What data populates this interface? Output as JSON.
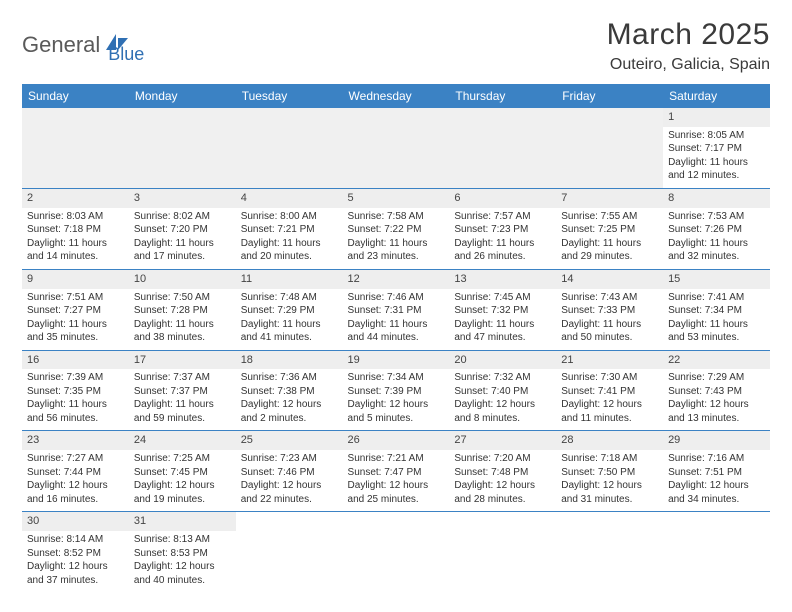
{
  "brand": {
    "part1": "General",
    "part2": "Blue"
  },
  "title": "March 2025",
  "location": "Outeiro, Galicia, Spain",
  "colors": {
    "header_bg": "#3b82c4",
    "header_text": "#ffffff",
    "brand_gray": "#5a5a5a",
    "brand_blue": "#2f6fb3",
    "cell_border": "#3b82c4",
    "daynum_bg": "#eeeeee",
    "text": "#333333"
  },
  "typography": {
    "title_fontsize": 30,
    "location_fontsize": 16,
    "dayheader_fontsize": 12,
    "cell_fontsize": 10
  },
  "day_headers": [
    "Sunday",
    "Monday",
    "Tuesday",
    "Wednesday",
    "Thursday",
    "Friday",
    "Saturday"
  ],
  "weeks": [
    [
      null,
      null,
      null,
      null,
      null,
      null,
      {
        "n": "1",
        "sr": "Sunrise: 8:05 AM",
        "ss": "Sunset: 7:17 PM",
        "d1": "Daylight: 11 hours",
        "d2": "and 12 minutes."
      }
    ],
    [
      {
        "n": "2",
        "sr": "Sunrise: 8:03 AM",
        "ss": "Sunset: 7:18 PM",
        "d1": "Daylight: 11 hours",
        "d2": "and 14 minutes."
      },
      {
        "n": "3",
        "sr": "Sunrise: 8:02 AM",
        "ss": "Sunset: 7:20 PM",
        "d1": "Daylight: 11 hours",
        "d2": "and 17 minutes."
      },
      {
        "n": "4",
        "sr": "Sunrise: 8:00 AM",
        "ss": "Sunset: 7:21 PM",
        "d1": "Daylight: 11 hours",
        "d2": "and 20 minutes."
      },
      {
        "n": "5",
        "sr": "Sunrise: 7:58 AM",
        "ss": "Sunset: 7:22 PM",
        "d1": "Daylight: 11 hours",
        "d2": "and 23 minutes."
      },
      {
        "n": "6",
        "sr": "Sunrise: 7:57 AM",
        "ss": "Sunset: 7:23 PM",
        "d1": "Daylight: 11 hours",
        "d2": "and 26 minutes."
      },
      {
        "n": "7",
        "sr": "Sunrise: 7:55 AM",
        "ss": "Sunset: 7:25 PM",
        "d1": "Daylight: 11 hours",
        "d2": "and 29 minutes."
      },
      {
        "n": "8",
        "sr": "Sunrise: 7:53 AM",
        "ss": "Sunset: 7:26 PM",
        "d1": "Daylight: 11 hours",
        "d2": "and 32 minutes."
      }
    ],
    [
      {
        "n": "9",
        "sr": "Sunrise: 7:51 AM",
        "ss": "Sunset: 7:27 PM",
        "d1": "Daylight: 11 hours",
        "d2": "and 35 minutes."
      },
      {
        "n": "10",
        "sr": "Sunrise: 7:50 AM",
        "ss": "Sunset: 7:28 PM",
        "d1": "Daylight: 11 hours",
        "d2": "and 38 minutes."
      },
      {
        "n": "11",
        "sr": "Sunrise: 7:48 AM",
        "ss": "Sunset: 7:29 PM",
        "d1": "Daylight: 11 hours",
        "d2": "and 41 minutes."
      },
      {
        "n": "12",
        "sr": "Sunrise: 7:46 AM",
        "ss": "Sunset: 7:31 PM",
        "d1": "Daylight: 11 hours",
        "d2": "and 44 minutes."
      },
      {
        "n": "13",
        "sr": "Sunrise: 7:45 AM",
        "ss": "Sunset: 7:32 PM",
        "d1": "Daylight: 11 hours",
        "d2": "and 47 minutes."
      },
      {
        "n": "14",
        "sr": "Sunrise: 7:43 AM",
        "ss": "Sunset: 7:33 PM",
        "d1": "Daylight: 11 hours",
        "d2": "and 50 minutes."
      },
      {
        "n": "15",
        "sr": "Sunrise: 7:41 AM",
        "ss": "Sunset: 7:34 PM",
        "d1": "Daylight: 11 hours",
        "d2": "and 53 minutes."
      }
    ],
    [
      {
        "n": "16",
        "sr": "Sunrise: 7:39 AM",
        "ss": "Sunset: 7:35 PM",
        "d1": "Daylight: 11 hours",
        "d2": "and 56 minutes."
      },
      {
        "n": "17",
        "sr": "Sunrise: 7:37 AM",
        "ss": "Sunset: 7:37 PM",
        "d1": "Daylight: 11 hours",
        "d2": "and 59 minutes."
      },
      {
        "n": "18",
        "sr": "Sunrise: 7:36 AM",
        "ss": "Sunset: 7:38 PM",
        "d1": "Daylight: 12 hours",
        "d2": "and 2 minutes."
      },
      {
        "n": "19",
        "sr": "Sunrise: 7:34 AM",
        "ss": "Sunset: 7:39 PM",
        "d1": "Daylight: 12 hours",
        "d2": "and 5 minutes."
      },
      {
        "n": "20",
        "sr": "Sunrise: 7:32 AM",
        "ss": "Sunset: 7:40 PM",
        "d1": "Daylight: 12 hours",
        "d2": "and 8 minutes."
      },
      {
        "n": "21",
        "sr": "Sunrise: 7:30 AM",
        "ss": "Sunset: 7:41 PM",
        "d1": "Daylight: 12 hours",
        "d2": "and 11 minutes."
      },
      {
        "n": "22",
        "sr": "Sunrise: 7:29 AM",
        "ss": "Sunset: 7:43 PM",
        "d1": "Daylight: 12 hours",
        "d2": "and 13 minutes."
      }
    ],
    [
      {
        "n": "23",
        "sr": "Sunrise: 7:27 AM",
        "ss": "Sunset: 7:44 PM",
        "d1": "Daylight: 12 hours",
        "d2": "and 16 minutes."
      },
      {
        "n": "24",
        "sr": "Sunrise: 7:25 AM",
        "ss": "Sunset: 7:45 PM",
        "d1": "Daylight: 12 hours",
        "d2": "and 19 minutes."
      },
      {
        "n": "25",
        "sr": "Sunrise: 7:23 AM",
        "ss": "Sunset: 7:46 PM",
        "d1": "Daylight: 12 hours",
        "d2": "and 22 minutes."
      },
      {
        "n": "26",
        "sr": "Sunrise: 7:21 AM",
        "ss": "Sunset: 7:47 PM",
        "d1": "Daylight: 12 hours",
        "d2": "and 25 minutes."
      },
      {
        "n": "27",
        "sr": "Sunrise: 7:20 AM",
        "ss": "Sunset: 7:48 PM",
        "d1": "Daylight: 12 hours",
        "d2": "and 28 minutes."
      },
      {
        "n": "28",
        "sr": "Sunrise: 7:18 AM",
        "ss": "Sunset: 7:50 PM",
        "d1": "Daylight: 12 hours",
        "d2": "and 31 minutes."
      },
      {
        "n": "29",
        "sr": "Sunrise: 7:16 AM",
        "ss": "Sunset: 7:51 PM",
        "d1": "Daylight: 12 hours",
        "d2": "and 34 minutes."
      }
    ],
    [
      {
        "n": "30",
        "sr": "Sunrise: 8:14 AM",
        "ss": "Sunset: 8:52 PM",
        "d1": "Daylight: 12 hours",
        "d2": "and 37 minutes."
      },
      {
        "n": "31",
        "sr": "Sunrise: 8:13 AM",
        "ss": "Sunset: 8:53 PM",
        "d1": "Daylight: 12 hours",
        "d2": "and 40 minutes."
      },
      null,
      null,
      null,
      null,
      null
    ]
  ]
}
